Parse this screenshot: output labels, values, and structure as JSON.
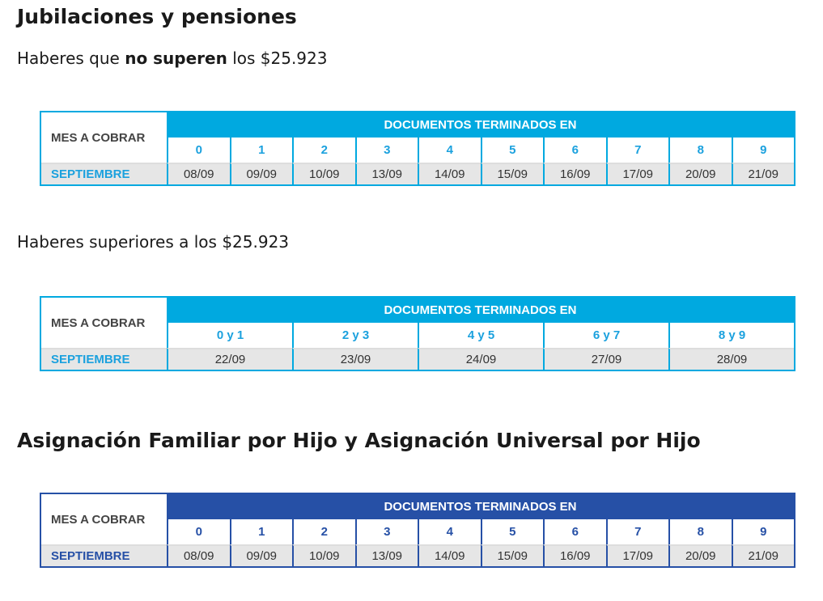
{
  "sections": [
    {
      "title": "Jubilaciones y pensiones",
      "blocks": [
        {
          "subtitle": [
            "Haberes que ",
            "no superen",
            " los $25.923"
          ],
          "table": {
            "month_header": "MES A COBRAR",
            "doc_header": "DOCUMENTOS TERMINADOS EN",
            "columns": [
              "0",
              "1",
              "2",
              "3",
              "4",
              "5",
              "6",
              "7",
              "8",
              "9"
            ],
            "month": "SEPTIEMBRE",
            "dates": [
              "08/09",
              "09/09",
              "10/09",
              "13/09",
              "14/09",
              "15/09",
              "16/09",
              "17/09",
              "20/09",
              "21/09"
            ]
          }
        },
        {
          "subtitle": [
            "Haberes superiores a los $25.923"
          ],
          "table": {
            "month_header": "MES A COBRAR",
            "doc_header": "DOCUMENTOS TERMINADOS EN",
            "columns": [
              "0 y 1",
              "2 y 3",
              "4 y 5",
              "6 y 7",
              "8 y 9"
            ],
            "month": "SEPTIEMBRE",
            "dates": [
              "22/09",
              "23/09",
              "24/09",
              "27/09",
              "28/09"
            ]
          }
        }
      ]
    },
    {
      "title": "Asignación Familiar por Hijo y Asignación Universal por Hijo",
      "blocks": [
        {
          "table": {
            "month_header": "MES A COBRAR",
            "doc_header": "DOCUMENTOS TERMINADOS EN",
            "columns": [
              "0",
              "1",
              "2",
              "3",
              "4",
              "5",
              "6",
              "7",
              "8",
              "9"
            ],
            "month": "SEPTIEMBRE",
            "dates": [
              "08/09",
              "09/09",
              "10/09",
              "13/09",
              "14/09",
              "15/09",
              "16/09",
              "17/09",
              "20/09",
              "21/09"
            ]
          }
        }
      ]
    }
  ]
}
